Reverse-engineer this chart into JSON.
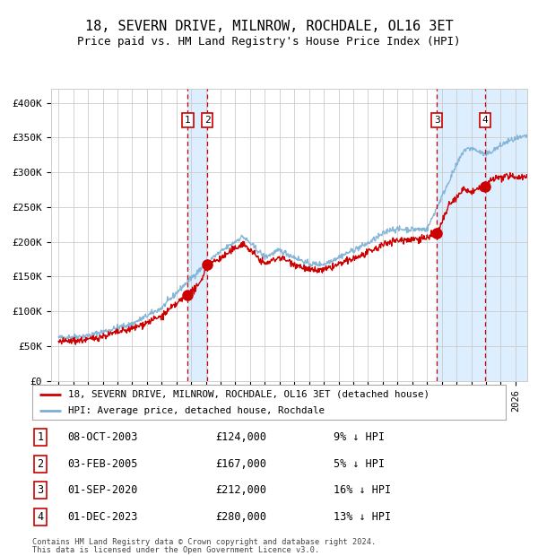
{
  "title": "18, SEVERN DRIVE, MILNROW, ROCHDALE, OL16 3ET",
  "subtitle": "Price paid vs. HM Land Registry's House Price Index (HPI)",
  "legend_line1": "18, SEVERN DRIVE, MILNROW, ROCHDALE, OL16 3ET (detached house)",
  "legend_line2": "HPI: Average price, detached house, Rochdale",
  "footer1": "Contains HM Land Registry data © Crown copyright and database right 2024.",
  "footer2": "This data is licensed under the Open Government Licence v3.0.",
  "transactions": [
    {
      "num": 1,
      "date": "08-OCT-2003",
      "price": "£124,000",
      "hpi": "9% ↓ HPI",
      "x_year": 2003.77,
      "price_val": 124000
    },
    {
      "num": 2,
      "date": "03-FEB-2005",
      "price": "£167,000",
      "hpi": "5% ↓ HPI",
      "x_year": 2005.09,
      "price_val": 167000
    },
    {
      "num": 3,
      "date": "01-SEP-2020",
      "price": "£212,000",
      "hpi": "16% ↓ HPI",
      "x_year": 2020.67,
      "price_val": 212000
    },
    {
      "num": 4,
      "date": "01-DEC-2023",
      "price": "£280,000",
      "hpi": "13% ↓ HPI",
      "x_year": 2023.92,
      "price_val": 280000
    }
  ],
  "hpi_color": "#7aafd4",
  "price_color": "#cc0000",
  "dot_color": "#cc0000",
  "vline_color": "#cc0000",
  "shade_color": "#ddeeff",
  "grid_color": "#cccccc",
  "bg_color": "#ffffff",
  "ylim": [
    0,
    420000
  ],
  "xlim_start": 1994.5,
  "xlim_end": 2026.8,
  "yticks": [
    0,
    50000,
    100000,
    150000,
    200000,
    250000,
    300000,
    350000,
    400000
  ],
  "ytick_labels": [
    "£0",
    "£50K",
    "£100K",
    "£150K",
    "£200K",
    "£250K",
    "£300K",
    "£350K",
    "£400K"
  ]
}
